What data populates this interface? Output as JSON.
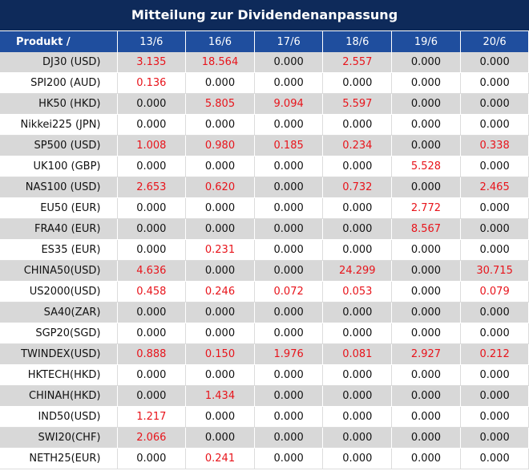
{
  "title": "Mitteilung zur Dividendenanpassung",
  "columns": [
    "Produkt /",
    "13/6",
    "16/6",
    "17/6",
    "18/6",
    "19/6",
    "20/6"
  ],
  "rows": [
    {
      "name": "DJ30 (USD)",
      "values": [
        "3.135",
        "18.564",
        "0.000",
        "2.557",
        "0.000",
        "0.000"
      ]
    },
    {
      "name": "SPI200 (AUD)",
      "values": [
        "0.136",
        "0.000",
        "0.000",
        "0.000",
        "0.000",
        "0.000"
      ]
    },
    {
      "name": "HK50 (HKD)",
      "values": [
        "0.000",
        "5.805",
        "9.094",
        "5.597",
        "0.000",
        "0.000"
      ]
    },
    {
      "name": "Nikkei225 (JPN)",
      "values": [
        "0.000",
        "0.000",
        "0.000",
        "0.000",
        "0.000",
        "0.000"
      ]
    },
    {
      "name": "SP500 (USD)",
      "values": [
        "1.008",
        "0.980",
        "0.185",
        "0.234",
        "0.000",
        "0.338"
      ]
    },
    {
      "name": "UK100 (GBP)",
      "values": [
        "0.000",
        "0.000",
        "0.000",
        "0.000",
        "5.528",
        "0.000"
      ]
    },
    {
      "name": "NAS100 (USD)",
      "values": [
        "2.653",
        "0.620",
        "0.000",
        "0.732",
        "0.000",
        "2.465"
      ]
    },
    {
      "name": "EU50 (EUR)",
      "values": [
        "0.000",
        "0.000",
        "0.000",
        "0.000",
        "2.772",
        "0.000"
      ]
    },
    {
      "name": "FRA40 (EUR)",
      "values": [
        "0.000",
        "0.000",
        "0.000",
        "0.000",
        "8.567",
        "0.000"
      ]
    },
    {
      "name": "ES35 (EUR)",
      "values": [
        "0.000",
        "0.231",
        "0.000",
        "0.000",
        "0.000",
        "0.000"
      ]
    },
    {
      "name": "CHINA50(USD)",
      "values": [
        "4.636",
        "0.000",
        "0.000",
        "24.299",
        "0.000",
        "30.715"
      ]
    },
    {
      "name": "US2000(USD)",
      "values": [
        "0.458",
        "0.246",
        "0.072",
        "0.053",
        "0.000",
        "0.079"
      ]
    },
    {
      "name": "SA40(ZAR)",
      "values": [
        "0.000",
        "0.000",
        "0.000",
        "0.000",
        "0.000",
        "0.000"
      ]
    },
    {
      "name": "SGP20(SGD)",
      "values": [
        "0.000",
        "0.000",
        "0.000",
        "0.000",
        "0.000",
        "0.000"
      ]
    },
    {
      "name": "TWINDEX(USD)",
      "values": [
        "0.888",
        "0.150",
        "1.976",
        "0.081",
        "2.927",
        "0.212"
      ]
    },
    {
      "name": "HKTECH(HKD)",
      "values": [
        "0.000",
        "0.000",
        "0.000",
        "0.000",
        "0.000",
        "0.000"
      ]
    },
    {
      "name": "CHINAH(HKD)",
      "values": [
        "0.000",
        "1.434",
        "0.000",
        "0.000",
        "0.000",
        "0.000"
      ]
    },
    {
      "name": "IND50(USD)",
      "values": [
        "1.217",
        "0.000",
        "0.000",
        "0.000",
        "0.000",
        "0.000"
      ]
    },
    {
      "name": "SWI20(CHF)",
      "values": [
        "2.066",
        "0.000",
        "0.000",
        "0.000",
        "0.000",
        "0.000"
      ]
    },
    {
      "name": "NETH25(EUR)",
      "values": [
        "0.000",
        "0.241",
        "0.000",
        "0.000",
        "0.000",
        "0.000"
      ]
    }
  ],
  "colors": {
    "title_bg": "#0e2a5a",
    "header_bg": "#1f4e9e",
    "stripe_bg": "#d8d8d8",
    "nonzero_text": "#e8141b",
    "zero_text": "#111111"
  }
}
